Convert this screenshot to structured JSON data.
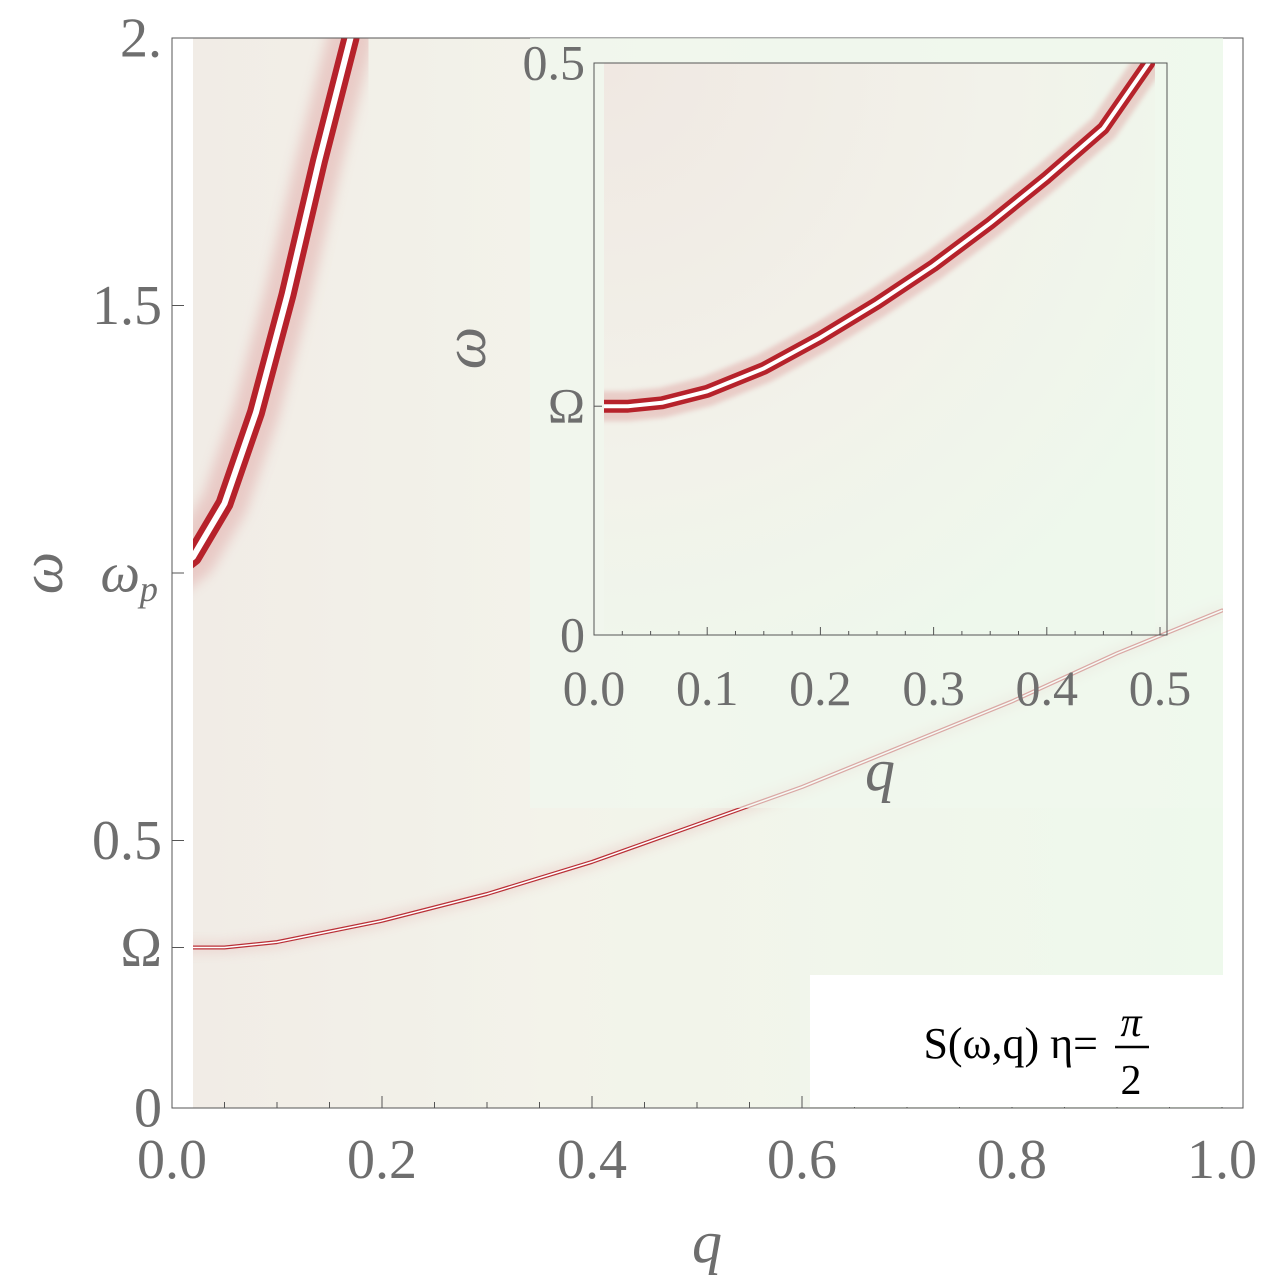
{
  "chart_data": [
    {
      "type": "heatmap",
      "title": "",
      "xlabel": "q",
      "ylabel": "ω",
      "xlim": [
        0,
        1
      ],
      "ylim": [
        0,
        2
      ],
      "x_ticks": [
        {
          "value": 0.0,
          "label": "0.0"
        },
        {
          "value": 0.2,
          "label": "0.2"
        },
        {
          "value": 0.4,
          "label": "0.4"
        },
        {
          "value": 0.6,
          "label": "0.6"
        },
        {
          "value": 0.8,
          "label": "0.8"
        },
        {
          "value": 1.0,
          "label": "1.0"
        }
      ],
      "y_ticks": [
        {
          "value": 0,
          "label": "0"
        },
        {
          "value": 0.3,
          "label": "Ω"
        },
        {
          "value": 0.5,
          "label": "0.5"
        },
        {
          "value": 1.0,
          "label": "ω",
          "sub": "p"
        },
        {
          "value": 1.5,
          "label": "1.5"
        },
        {
          "value": 2.0,
          "label": "2."
        }
      ],
      "annotation": {
        "main": "S(ω,q) η=",
        "numerator": "π",
        "denominator": "2"
      },
      "colors": {
        "background": "#eff8ed",
        "peak": "#b0101a",
        "center": "#ffffff"
      },
      "series": [
        {
          "x": [
            0.0,
            0.02,
            0.05,
            0.08,
            0.11,
            0.14,
            0.17
          ],
          "y": [
            1.0,
            1.03,
            1.13,
            1.3,
            1.52,
            1.77,
            2.0
          ]
        },
        {
          "x": [
            0.0,
            0.05,
            0.1,
            0.2,
            0.3,
            0.4,
            0.5,
            0.6,
            0.7,
            0.8,
            0.9,
            1.0
          ],
          "y": [
            0.3,
            0.3,
            0.31,
            0.35,
            0.4,
            0.46,
            0.53,
            0.6,
            0.68,
            0.76,
            0.85,
            0.93
          ]
        }
      ]
    },
    {
      "type": "heatmap",
      "title": "",
      "xlabel": "q",
      "ylabel": "ω",
      "xlim": [
        0,
        0.5
      ],
      "ylim": [
        0,
        0.5
      ],
      "x_ticks": [
        {
          "value": 0.0,
          "label": "0.0"
        },
        {
          "value": 0.1,
          "label": "0.1"
        },
        {
          "value": 0.2,
          "label": "0.2"
        },
        {
          "value": 0.3,
          "label": "0.3"
        },
        {
          "value": 0.4,
          "label": "0.4"
        },
        {
          "value": 0.5,
          "label": "0.5"
        }
      ],
      "y_ticks": [
        {
          "value": 0,
          "label": "0"
        },
        {
          "value": 0.2,
          "label": "Ω"
        },
        {
          "value": 0.5,
          "label": "0.5"
        }
      ],
      "series": [
        {
          "x": [
            0.0,
            0.03,
            0.06,
            0.1,
            0.15,
            0.2,
            0.25,
            0.3,
            0.35,
            0.4,
            0.45,
            0.49
          ],
          "y": [
            0.2,
            0.2,
            0.203,
            0.213,
            0.233,
            0.26,
            0.29,
            0.323,
            0.36,
            0.4,
            0.443,
            0.5
          ]
        }
      ]
    }
  ]
}
